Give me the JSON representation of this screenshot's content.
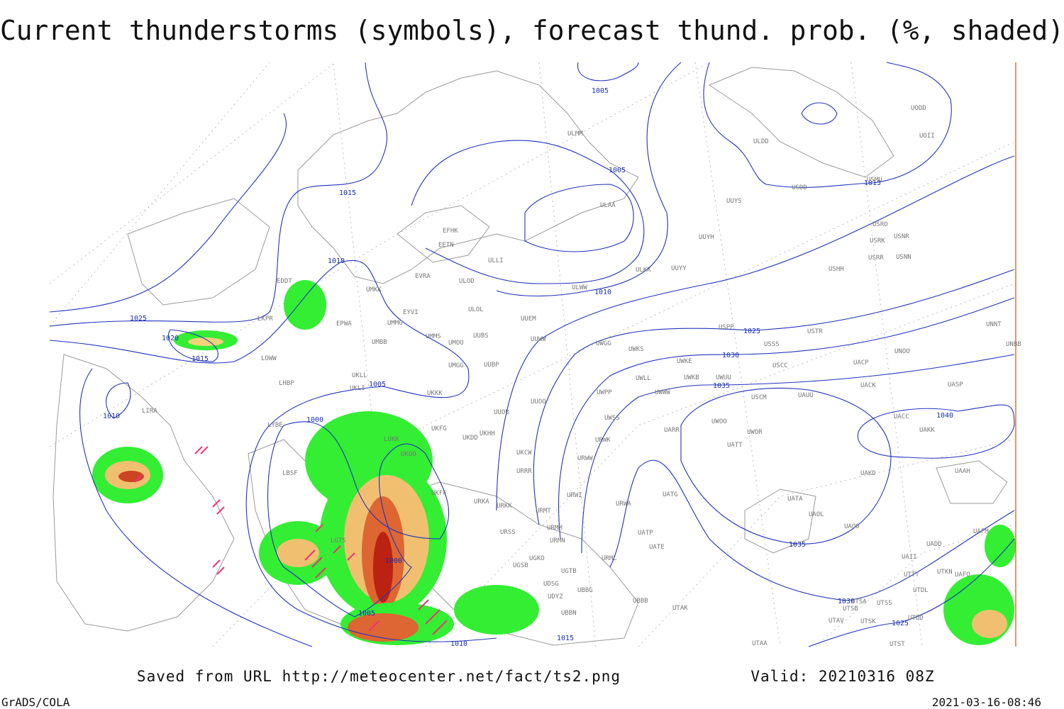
{
  "header": {
    "title": "Current thunderstorms (symbols), forecast thund. prob. (%, shaded)"
  },
  "footer": {
    "source": "Saved from URL http://meteocenter.net/fact/ts2.png",
    "valid": "Valid: 20210316 08Z",
    "software": "GrADS/COLA",
    "timestamp": "2021-03-16-08:46"
  },
  "isobar_labels": [
    "1005",
    "1015",
    "1005",
    "1015",
    "1010",
    "1010",
    "1025",
    "1020",
    "1015",
    "1025",
    "1030",
    "1035",
    "1005",
    "1010",
    "1000",
    "1040",
    "1035",
    "1000",
    "1030",
    "1005",
    "1025",
    "1015",
    "1010"
  ],
  "stations": [
    "ULMM",
    "ULDD",
    "UODD",
    "UOII",
    "USDD",
    "USMU",
    "ULAA",
    "UUYS",
    "USRO",
    "USRK",
    "USNR",
    "USRR",
    "USNN",
    "UUYH",
    "ULKK",
    "UUYY",
    "ULWW",
    "EFHK",
    "EETN",
    "ULLI",
    "EVRA",
    "ULOD",
    "UMKK",
    "EYVI",
    "ULOL",
    "UUEM",
    "EPWA",
    "UMMG",
    "UMMS",
    "UMOO",
    "UUBS",
    "UUWW",
    "EDDT",
    "LKPR",
    "LOWW",
    "UMBB",
    "UMGG",
    "UUBP",
    "UWGG",
    "UWKS",
    "UWKE",
    "UWKB",
    "UWLL",
    "UWUU",
    "USSS",
    "USPP",
    "USTR",
    "USCC",
    "UACP",
    "UNOO",
    "UNNT",
    "UNBB",
    "USHH",
    "LHBP",
    "UKLL",
    "UKLI",
    "UKKK",
    "UUOO",
    "UWPP",
    "UWWW",
    "USCM",
    "UAUU",
    "UACK",
    "UASP",
    "LIRA",
    "LYBE",
    "UKHH",
    "UKFG",
    "UKDD",
    "UUOB",
    "UWSS",
    "UARR",
    "UWOO",
    "UWOR",
    "UATT",
    "UACC",
    "UAKK",
    "LUKK",
    "UKOO",
    "UKCW",
    "URWK",
    "URRR",
    "URWW",
    "LBSF",
    "UAKD",
    "UAAH",
    "UKFF",
    "UATG",
    "URWI",
    "URKA",
    "URKK",
    "URMT",
    "URWA",
    "UATA",
    "UAOL",
    "UAOO",
    "UAFM",
    "URSS",
    "URMM",
    "URMN",
    "UATP",
    "UATE",
    "UADD",
    "LGTS",
    "UGKO",
    "URML",
    "UAII",
    "UTTT",
    "UTKN",
    "UAFO",
    "UGSB",
    "UGTB",
    "UDSG",
    "UDYZ",
    "UBBG",
    "UTDL",
    "UBBB",
    "UTAK",
    "UTSA",
    "UTSS",
    "UTSB",
    "UBBN",
    "UTAV",
    "UTSK",
    "UTDD",
    "UTAA",
    "UTST"
  ]
}
